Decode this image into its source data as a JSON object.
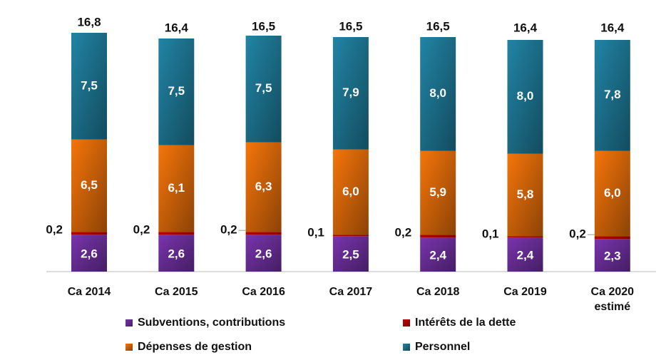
{
  "chart_data": {
    "type": "bar",
    "stacked": true,
    "title": "",
    "xlabel": "",
    "ylabel": "",
    "categories": [
      [
        "Ca 2014"
      ],
      [
        "Ca 2015"
      ],
      [
        "Ca 2016"
      ],
      [
        "Ca 2017"
      ],
      [
        "Ca 2018"
      ],
      [
        "Ca 2019"
      ],
      [
        "Ca 2020",
        "estimé"
      ]
    ],
    "series": [
      {
        "name": "Subventions, contributions",
        "color": "#7030A0",
        "values": [
          2.6,
          2.6,
          2.6,
          2.5,
          2.4,
          2.4,
          2.3
        ],
        "labels": [
          "2,6",
          "2,6",
          "2,6",
          "2,5",
          "2,4",
          "2,4",
          "2,3"
        ]
      },
      {
        "name": "Intérêts de la dette",
        "color": "#C00000",
        "values": [
          0.2,
          0.2,
          0.2,
          0.1,
          0.2,
          0.1,
          0.2
        ],
        "labels": [
          "0,2",
          "0,2",
          "0,2",
          "0,1",
          "0,2",
          "0,1",
          "0,2"
        ]
      },
      {
        "name": "Dépenses de gestion",
        "color": "#E36C09",
        "values": [
          6.5,
          6.1,
          6.3,
          6.0,
          5.9,
          5.8,
          6.0
        ],
        "labels": [
          "6,5",
          "6,1",
          "6,3",
          "6,0",
          "5,9",
          "5,8",
          "6,0"
        ]
      },
      {
        "name": "Personnel",
        "color": "#1F7A99",
        "values": [
          7.5,
          7.5,
          7.5,
          7.9,
          8.0,
          8.0,
          7.8
        ],
        "labels": [
          "7,5",
          "7,5",
          "7,5",
          "7,9",
          "8,0",
          "8,0",
          "7,8"
        ]
      }
    ],
    "totals": [
      16.8,
      16.4,
      16.5,
      16.5,
      16.5,
      16.4,
      16.4
    ],
    "total_labels": [
      "16,8",
      "16,4",
      "16,5",
      "16,5",
      "16,5",
      "16,4",
      "16,4"
    ],
    "ylim": [
      0,
      16.8
    ],
    "legend_position": "bottom",
    "legend_order": [
      "Subventions, contributions",
      "Intérêts de la dette",
      "Dépenses de gestion",
      "Personnel"
    ]
  }
}
